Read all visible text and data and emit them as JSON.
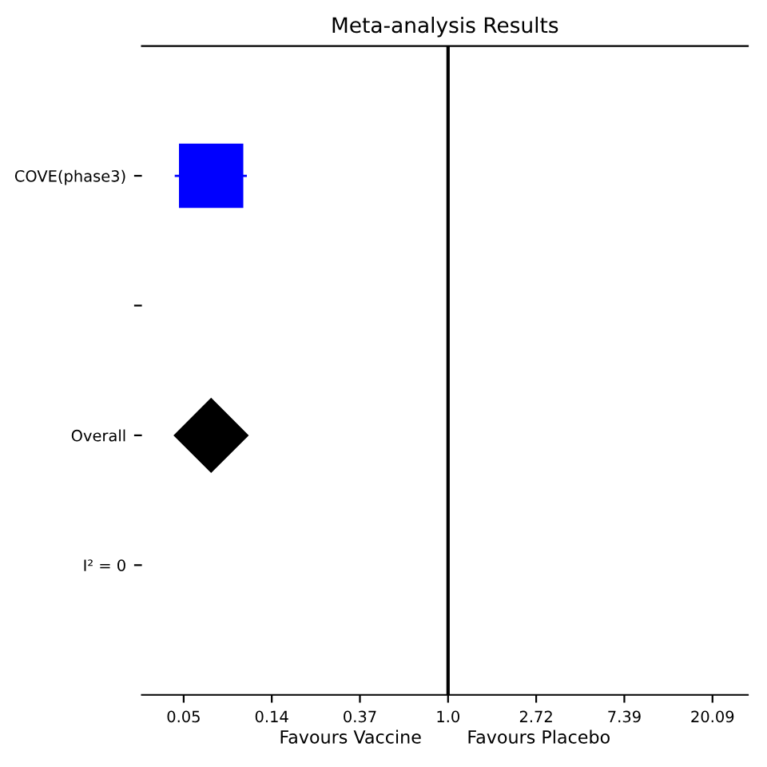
{
  "chart_data": {
    "type": "scatter",
    "orientation": "horizontal",
    "title": "Meta-analysis Results",
    "xlabel": "Favours Vaccine        Favours Placebo",
    "categories": [
      "COVE(phase3)",
      null,
      "Overall",
      "I² = 0"
    ],
    "series": [
      {
        "marker": "square",
        "color": "#0000ff",
        "values": [
          0.068,
          null,
          null,
          null
        ],
        "errors": [
          [
            0.045,
            0.102
          ],
          null,
          null,
          null
        ]
      },
      {
        "marker": "diamond",
        "color": "#000000",
        "values": [
          null,
          null,
          0.068,
          null
        ]
      }
    ],
    "log": "x",
    "xlim": [
      0.031,
      30
    ],
    "xticks": [
      {
        "value": 0.0498,
        "label": "0.05"
      },
      {
        "value": 0.1353,
        "label": "0.14"
      },
      {
        "value": 0.3679,
        "label": "0.37"
      },
      {
        "value": 1,
        "label": "1.0"
      },
      {
        "value": 2.718,
        "label": "2.72"
      },
      {
        "value": 7.389,
        "label": "7.39"
      },
      {
        "value": 20.09,
        "label": "20.09"
      }
    ],
    "ref_lines": [
      {
        "axis": "x",
        "value": 1.0,
        "color": "#000000"
      }
    ],
    "grid": false,
    "legend": false
  }
}
